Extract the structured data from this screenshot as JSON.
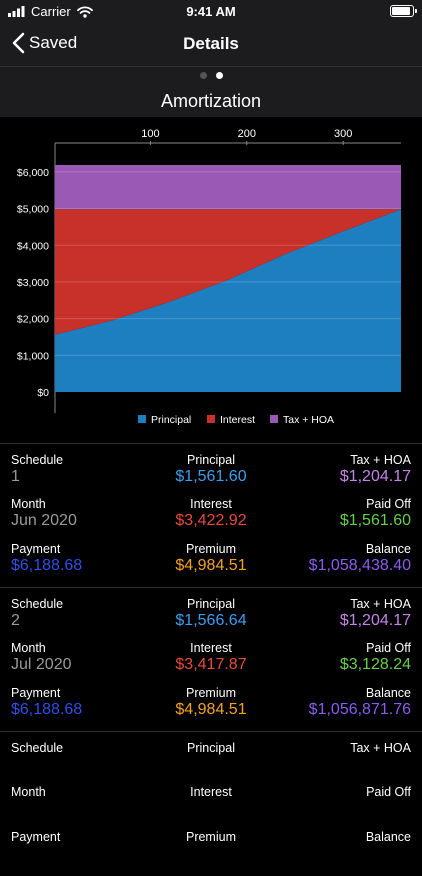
{
  "status_bar": {
    "carrier": "Carrier",
    "time": "9:41 AM"
  },
  "nav": {
    "back_label": "Saved",
    "title": "Details"
  },
  "pager": {
    "pages": 2,
    "active": 1
  },
  "chart_title": "Amortization",
  "colors": {
    "principal": "#1e7fc0",
    "interest": "#c8302a",
    "tax_hoa": "#9b59b6",
    "green": "#66d04a",
    "blue": "#3a9ff0",
    "red": "#e84a3c",
    "orange": "#f4a321",
    "purple": "#8a5cf0",
    "lilac": "#c585e8",
    "navy": "#2d4fe8",
    "gray": "#9a9a9a"
  },
  "chart_data": {
    "type": "area",
    "stacked": true,
    "x_range": [
      1,
      360
    ],
    "x_ticks": [
      100,
      200,
      300
    ],
    "x_tick_labels": [
      "100",
      "200",
      "300"
    ],
    "ylim": [
      0,
      6188.68
    ],
    "y_ticks": [
      0,
      1000,
      2000,
      3000,
      4000,
      5000,
      6000
    ],
    "y_tick_labels": [
      "$0",
      "$1,000",
      "$2,000",
      "$3,000",
      "$4,000",
      "$5,000",
      "$6,000"
    ],
    "series": [
      {
        "name": "Principal",
        "color": "#1e7fc0",
        "x": [
          1,
          60,
          120,
          180,
          240,
          300,
          360
        ],
        "values": [
          1561.6,
          1950,
          2460,
          3050,
          3760,
          4380,
          4984.51
        ]
      },
      {
        "name": "Interest",
        "color": "#c8302a",
        "x": [
          1,
          60,
          120,
          180,
          240,
          300,
          360
        ],
        "values": [
          3422.92,
          3034.51,
          2524.51,
          1934.51,
          1224.51,
          604.51,
          0
        ]
      },
      {
        "name": "Tax + HOA",
        "color": "#9b59b6",
        "x": [
          1,
          60,
          120,
          180,
          240,
          300,
          360
        ],
        "values": [
          1204.17,
          1204.17,
          1204.17,
          1204.17,
          1204.17,
          1204.17,
          1204.17
        ]
      }
    ],
    "legend": [
      "Principal",
      "Interest",
      "Tax + HOA"
    ],
    "legend_position": "bottom",
    "grid": true
  },
  "labels": {
    "schedule": "Schedule",
    "principal": "Principal",
    "tax_hoa": "Tax + HOA",
    "month": "Month",
    "interest": "Interest",
    "paid_off": "Paid Off",
    "payment": "Payment",
    "premium": "Premium",
    "balance": "Balance"
  },
  "records": [
    {
      "schedule": "1",
      "principal": "$1,561.60",
      "tax_hoa": "$1,204.17",
      "month": "Jun 2020",
      "interest": "$3,422.92",
      "paid_off": "$1,561.60",
      "payment": "$6,188.68",
      "premium": "$4,984.51",
      "balance": "$1,058,438.40"
    },
    {
      "schedule": "2",
      "principal": "$1,566.64",
      "tax_hoa": "$1,204.17",
      "month": "Jul 2020",
      "interest": "$3,417.87",
      "paid_off": "$3,128.24",
      "payment": "$6,188.68",
      "premium": "$4,984.51",
      "balance": "$1,056,871.76"
    },
    {
      "schedule": "",
      "principal": "",
      "tax_hoa": "",
      "month": "",
      "interest": "",
      "paid_off": "",
      "payment": "",
      "premium": "",
      "balance": ""
    }
  ]
}
